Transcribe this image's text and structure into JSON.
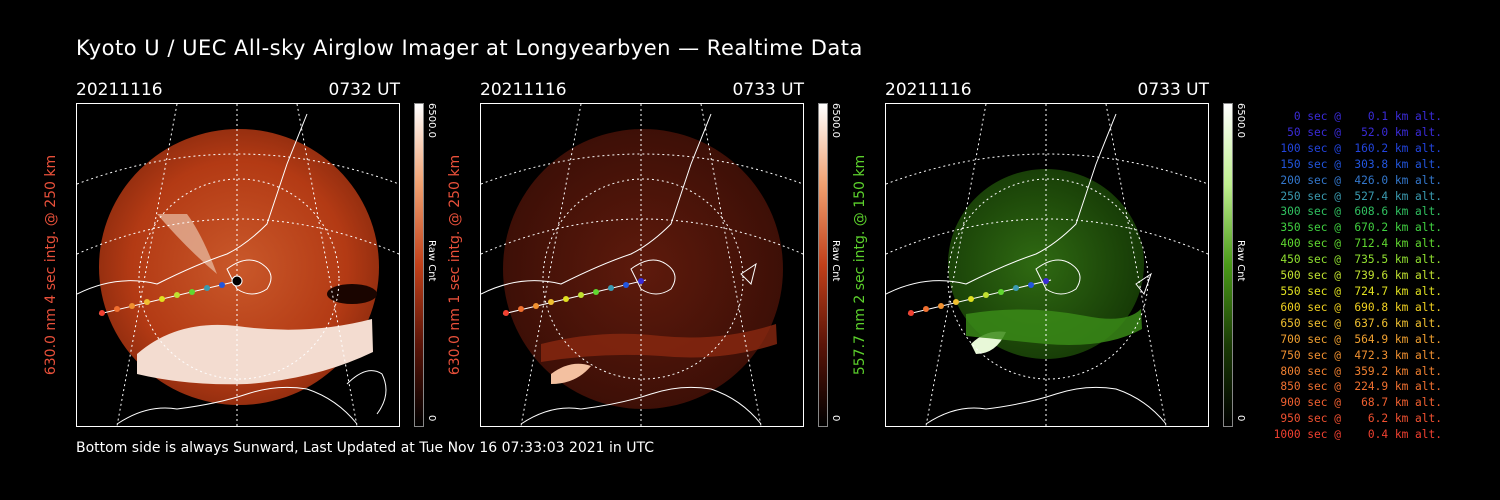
{
  "title": "Kyoto U / UEC All-sky Airglow Imager at Longyearbyen — Realtime Data",
  "footer": "Bottom side is always Sunward, Last Updated at Tue Nov 16 07:33:03 2021 in UTC",
  "panels": [
    {
      "date": "20211116",
      "time": "0732 UT",
      "ylabel": "630.0 nm 4 sec intg. @ 250 km",
      "ylabel_color": "#e8503a",
      "cbar_max": "6500.0",
      "cbar_unit": "Raw Cnt",
      "cbar_min": "0",
      "color": "#c0401a"
    },
    {
      "date": "20211116",
      "time": "0733 UT",
      "ylabel": "630.0 nm 1 sec intg. @ 250 km",
      "ylabel_color": "#e8503a",
      "cbar_max": "6500.0",
      "cbar_unit": "Raw Cnt",
      "cbar_min": "0",
      "color": "#6e1a0c"
    },
    {
      "date": "20211116",
      "time": "0733 UT",
      "ylabel": "557.7 nm 2 sec intg. @ 150 km",
      "ylabel_color": "#5cd02c",
      "cbar_max": "6500.0",
      "cbar_unit": "Raw Cnt",
      "cbar_min": "0",
      "color": "#1f4f0a"
    }
  ],
  "legend": [
    {
      "text": "   0 sec @    0.1 km alt.",
      "color": "#3a2bd8"
    },
    {
      "text": "  50 sec @   52.0 km alt.",
      "color": "#3a2bd8"
    },
    {
      "text": " 100 sec @  160.2 km alt.",
      "color": "#2244dd"
    },
    {
      "text": " 150 sec @  303.8 km alt.",
      "color": "#2255dd"
    },
    {
      "text": " 200 sec @  426.0 km alt.",
      "color": "#3377cc"
    },
    {
      "text": " 250 sec @  527.4 km alt.",
      "color": "#3a9ab0"
    },
    {
      "text": " 300 sec @  608.6 km alt.",
      "color": "#30c060"
    },
    {
      "text": " 350 sec @  670.2 km alt.",
      "color": "#40d040"
    },
    {
      "text": " 400 sec @  712.4 km alt.",
      "color": "#60d830"
    },
    {
      "text": " 450 sec @  735.5 km alt.",
      "color": "#90e030"
    },
    {
      "text": " 500 sec @  739.6 km alt.",
      "color": "#c0e030"
    },
    {
      "text": " 550 sec @  724.7 km alt.",
      "color": "#e0e020"
    },
    {
      "text": " 600 sec @  690.8 km alt.",
      "color": "#f0d020"
    },
    {
      "text": " 650 sec @  637.6 km alt.",
      "color": "#f0c030"
    },
    {
      "text": " 700 sec @  564.9 km alt.",
      "color": "#f0a030"
    },
    {
      "text": " 750 sec @  472.3 km alt.",
      "color": "#f09030"
    },
    {
      "text": " 800 sec @  359.2 km alt.",
      "color": "#f08030"
    },
    {
      "text": " 850 sec @  224.9 km alt.",
      "color": "#f07030"
    },
    {
      "text": " 900 sec @   68.7 km alt.",
      "color": "#f06030"
    },
    {
      "text": " 950 sec @    6.2 km alt.",
      "color": "#f05030"
    },
    {
      "text": "1000 sec @    0.4 km alt.",
      "color": "#f04030"
    }
  ]
}
